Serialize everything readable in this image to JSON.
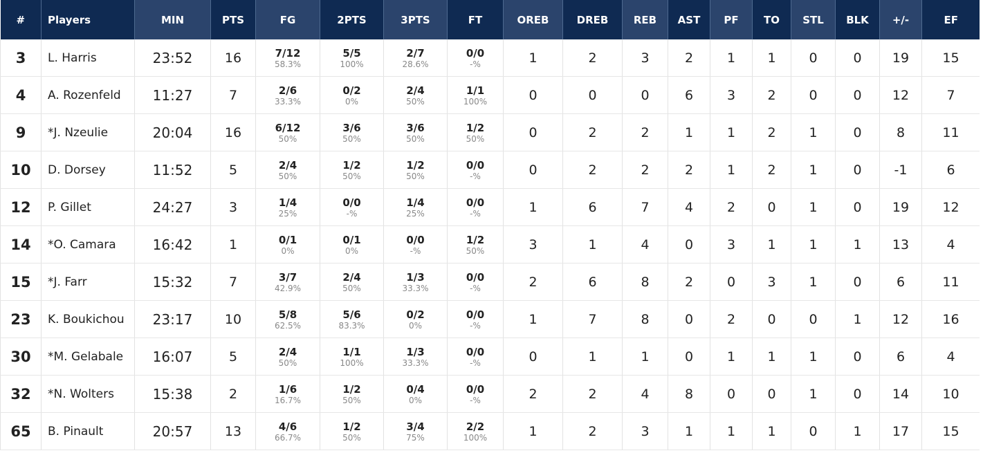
{
  "headers": [
    "#",
    "Players",
    "MIN",
    "PTS",
    "FG",
    "2PTS",
    "3PTS",
    "FT",
    "OREB",
    "DREB",
    "REB",
    "AST",
    "PF",
    "TO",
    "STL",
    "BLK",
    "+/-",
    "EF"
  ],
  "colors": {
    "header_dark": "#0f2a52",
    "header_alt": "#2b446c",
    "pct_text": "#888888"
  },
  "rows": [
    {
      "num": "3",
      "name": "L. Harris",
      "min": "23:52",
      "pts": "16",
      "fg": "7/12",
      "fg_pct": "58.3%",
      "p2": "5/5",
      "p2_pct": "100%",
      "p3": "2/7",
      "p3_pct": "28.6%",
      "ft": "0/0",
      "ft_pct": "-%",
      "oreb": "1",
      "dreb": "2",
      "reb": "3",
      "ast": "2",
      "pf": "1",
      "to": "1",
      "stl": "0",
      "blk": "0",
      "pm": "19",
      "ef": "15"
    },
    {
      "num": "4",
      "name": "A. Rozenfeld",
      "min": "11:27",
      "pts": "7",
      "fg": "2/6",
      "fg_pct": "33.3%",
      "p2": "0/2",
      "p2_pct": "0%",
      "p3": "2/4",
      "p3_pct": "50%",
      "ft": "1/1",
      "ft_pct": "100%",
      "oreb": "0",
      "dreb": "0",
      "reb": "0",
      "ast": "6",
      "pf": "3",
      "to": "2",
      "stl": "0",
      "blk": "0",
      "pm": "12",
      "ef": "7"
    },
    {
      "num": "9",
      "name": "*J. Nzeulie",
      "min": "20:04",
      "pts": "16",
      "fg": "6/12",
      "fg_pct": "50%",
      "p2": "3/6",
      "p2_pct": "50%",
      "p3": "3/6",
      "p3_pct": "50%",
      "ft": "1/2",
      "ft_pct": "50%",
      "oreb": "0",
      "dreb": "2",
      "reb": "2",
      "ast": "1",
      "pf": "1",
      "to": "2",
      "stl": "1",
      "blk": "0",
      "pm": "8",
      "ef": "11"
    },
    {
      "num": "10",
      "name": "D. Dorsey",
      "min": "11:52",
      "pts": "5",
      "fg": "2/4",
      "fg_pct": "50%",
      "p2": "1/2",
      "p2_pct": "50%",
      "p3": "1/2",
      "p3_pct": "50%",
      "ft": "0/0",
      "ft_pct": "-%",
      "oreb": "0",
      "dreb": "2",
      "reb": "2",
      "ast": "2",
      "pf": "1",
      "to": "2",
      "stl": "1",
      "blk": "0",
      "pm": "-1",
      "ef": "6"
    },
    {
      "num": "12",
      "name": "P. Gillet",
      "min": "24:27",
      "pts": "3",
      "fg": "1/4",
      "fg_pct": "25%",
      "p2": "0/0",
      "p2_pct": "-%",
      "p3": "1/4",
      "p3_pct": "25%",
      "ft": "0/0",
      "ft_pct": "-%",
      "oreb": "1",
      "dreb": "6",
      "reb": "7",
      "ast": "4",
      "pf": "2",
      "to": "0",
      "stl": "1",
      "blk": "0",
      "pm": "19",
      "ef": "12"
    },
    {
      "num": "14",
      "name": "*O. Camara",
      "min": "16:42",
      "pts": "1",
      "fg": "0/1",
      "fg_pct": "0%",
      "p2": "0/1",
      "p2_pct": "0%",
      "p3": "0/0",
      "p3_pct": "-%",
      "ft": "1/2",
      "ft_pct": "50%",
      "oreb": "3",
      "dreb": "1",
      "reb": "4",
      "ast": "0",
      "pf": "3",
      "to": "1",
      "stl": "1",
      "blk": "1",
      "pm": "13",
      "ef": "4"
    },
    {
      "num": "15",
      "name": "*J. Farr",
      "min": "15:32",
      "pts": "7",
      "fg": "3/7",
      "fg_pct": "42.9%",
      "p2": "2/4",
      "p2_pct": "50%",
      "p3": "1/3",
      "p3_pct": "33.3%",
      "ft": "0/0",
      "ft_pct": "-%",
      "oreb": "2",
      "dreb": "6",
      "reb": "8",
      "ast": "2",
      "pf": "0",
      "to": "3",
      "stl": "1",
      "blk": "0",
      "pm": "6",
      "ef": "11"
    },
    {
      "num": "23",
      "name": "K. Boukichou",
      "min": "23:17",
      "pts": "10",
      "fg": "5/8",
      "fg_pct": "62.5%",
      "p2": "5/6",
      "p2_pct": "83.3%",
      "p3": "0/2",
      "p3_pct": "0%",
      "ft": "0/0",
      "ft_pct": "-%",
      "oreb": "1",
      "dreb": "7",
      "reb": "8",
      "ast": "0",
      "pf": "2",
      "to": "0",
      "stl": "0",
      "blk": "1",
      "pm": "12",
      "ef": "16"
    },
    {
      "num": "30",
      "name": "*M. Gelabale",
      "min": "16:07",
      "pts": "5",
      "fg": "2/4",
      "fg_pct": "50%",
      "p2": "1/1",
      "p2_pct": "100%",
      "p3": "1/3",
      "p3_pct": "33.3%",
      "ft": "0/0",
      "ft_pct": "-%",
      "oreb": "0",
      "dreb": "1",
      "reb": "1",
      "ast": "0",
      "pf": "1",
      "to": "1",
      "stl": "1",
      "blk": "0",
      "pm": "6",
      "ef": "4"
    },
    {
      "num": "32",
      "name": "*N. Wolters",
      "min": "15:38",
      "pts": "2",
      "fg": "1/6",
      "fg_pct": "16.7%",
      "p2": "1/2",
      "p2_pct": "50%",
      "p3": "0/4",
      "p3_pct": "0%",
      "ft": "0/0",
      "ft_pct": "-%",
      "oreb": "2",
      "dreb": "2",
      "reb": "4",
      "ast": "8",
      "pf": "0",
      "to": "0",
      "stl": "1",
      "blk": "0",
      "pm": "14",
      "ef": "10"
    },
    {
      "num": "65",
      "name": "B. Pinault",
      "min": "20:57",
      "pts": "13",
      "fg": "4/6",
      "fg_pct": "66.7%",
      "p2": "1/2",
      "p2_pct": "50%",
      "p3": "3/4",
      "p3_pct": "75%",
      "ft": "2/2",
      "ft_pct": "100%",
      "oreb": "1",
      "dreb": "2",
      "reb": "3",
      "ast": "1",
      "pf": "1",
      "to": "1",
      "stl": "0",
      "blk": "1",
      "pm": "17",
      "ef": "15"
    }
  ]
}
